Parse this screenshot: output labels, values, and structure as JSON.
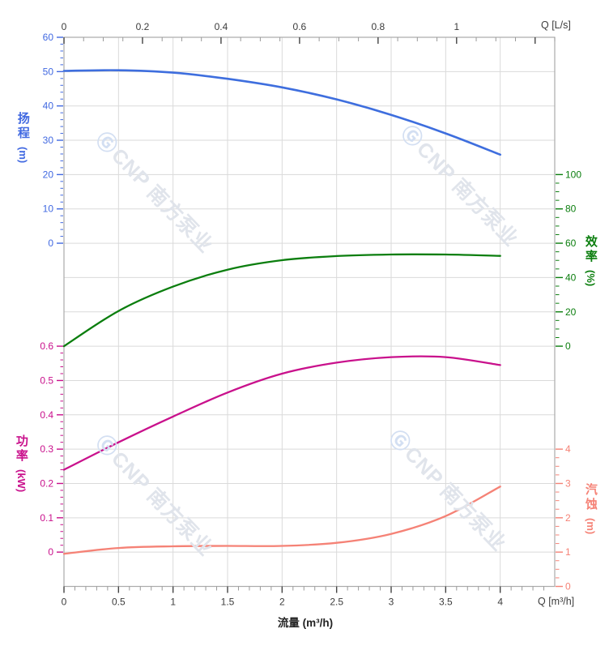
{
  "watermark": {
    "logo": "Ⓖ",
    "text": "CNP 南方泵业"
  },
  "chart_data": {
    "type": "line",
    "title": "",
    "grid": true,
    "x": {
      "bottom_label": "流量 (m³/h)",
      "bottom_end_label": "Q [m³/h]",
      "bottom_ticks": [
        "0",
        "0.5",
        "1",
        "1.5",
        "2",
        "2.5",
        "3",
        "3.5",
        "4"
      ],
      "bottom_range": [
        0,
        4.5
      ],
      "top_label": "Q [L/s]",
      "top_ticks": [
        "0",
        "0.2",
        "0.4",
        "0.6",
        "0.8",
        "1"
      ],
      "top_range_lps": [
        0,
        1.25
      ],
      "lps_to_m3h": 3.6
    },
    "axes": {
      "head": {
        "name": "扬程",
        "unit": "(m)",
        "color": "#4169e1",
        "ticks": [
          "60",
          "50",
          "40",
          "30",
          "20",
          "10",
          "0"
        ],
        "range": [
          0,
          60
        ]
      },
      "efficiency": {
        "name": "效率",
        "unit": "(%)",
        "color": "#0b7e0e",
        "ticks": [
          "100",
          "80",
          "60",
          "40",
          "20",
          "0"
        ],
        "range": [
          0,
          100
        ]
      },
      "power": {
        "name": "功率",
        "unit": "(kW)",
        "color": "#c9118c",
        "ticks": [
          "0.6",
          "0.5",
          "0.4",
          "0.3",
          "0.2",
          "0.1",
          "0"
        ],
        "range": [
          0,
          0.6
        ]
      },
      "npsh": {
        "name": "汽蚀",
        "unit": "(m)",
        "color": "#f58276",
        "ticks": [
          "4",
          "3",
          "2",
          "1",
          "0"
        ],
        "range": [
          0,
          4
        ]
      }
    },
    "series": [
      {
        "name": "head",
        "axis": "head",
        "color": "#3e6ede",
        "x": [
          0,
          0.5,
          1,
          1.5,
          2,
          2.5,
          3,
          3.5,
          4
        ],
        "values": [
          50.2,
          50.4,
          49.7,
          47.9,
          45.4,
          41.9,
          37.4,
          32.0,
          25.8
        ]
      },
      {
        "name": "efficiency",
        "axis": "efficiency",
        "color": "#0b7e0e",
        "x": [
          0,
          0.5,
          1,
          1.5,
          2,
          2.5,
          3,
          3.5,
          4
        ],
        "values": [
          0,
          20.5,
          34.7,
          44.6,
          50.1,
          52.5,
          53.4,
          53.4,
          52.6
        ]
      },
      {
        "name": "power",
        "axis": "power",
        "color": "#c9118c",
        "x": [
          0,
          0.5,
          1,
          1.5,
          2,
          2.5,
          3,
          3.5,
          4
        ],
        "values": [
          0.24,
          0.32,
          0.395,
          0.465,
          0.52,
          0.552,
          0.568,
          0.568,
          0.545
        ]
      },
      {
        "name": "npsh",
        "axis": "npsh",
        "color": "#f58276",
        "x": [
          0,
          0.5,
          1,
          1.5,
          2,
          2.5,
          3,
          3.5,
          4
        ],
        "values": [
          0.95,
          1.12,
          1.17,
          1.18,
          1.18,
          1.27,
          1.53,
          2.05,
          2.91
        ]
      }
    ]
  }
}
